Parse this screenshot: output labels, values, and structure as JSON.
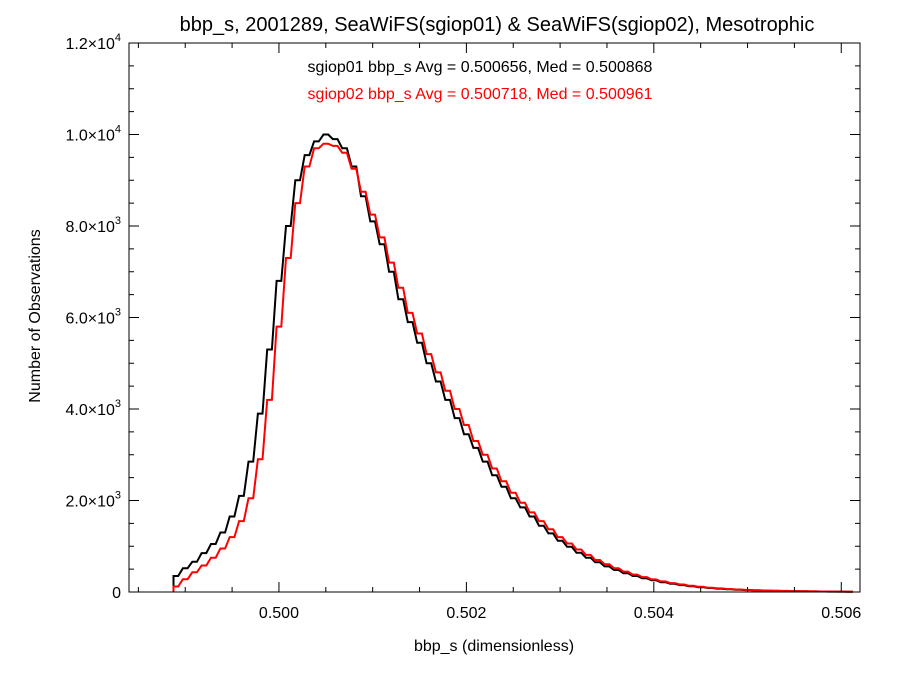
{
  "chart_data": {
    "type": "histogram",
    "title": "bbp_s, 2001289, SeaWiFS(sgiop01) & SeaWiFS(sgiop02), Mesotrophic",
    "xlabel": "bbp_s (dimensionless)",
    "ylabel": "Number of Observations",
    "xlim": [
      0.4984,
      0.5062
    ],
    "ylim": [
      0,
      12000
    ],
    "x_ticks": [
      {
        "value": 0.5,
        "label": "0.500"
      },
      {
        "value": 0.502,
        "label": "0.502"
      },
      {
        "value": 0.504,
        "label": "0.504"
      },
      {
        "value": 0.506,
        "label": "0.506"
      }
    ],
    "y_ticks": [
      {
        "value": 0,
        "label": "0"
      },
      {
        "value": 2000,
        "mant": "2.0",
        "exp": "3"
      },
      {
        "value": 4000,
        "mant": "4.0",
        "exp": "3"
      },
      {
        "value": 6000,
        "mant": "6.0",
        "exp": "3"
      },
      {
        "value": 8000,
        "mant": "8.0",
        "exp": "3"
      },
      {
        "value": 10000,
        "mant": "1.0",
        "exp": "4"
      },
      {
        "value": 12000,
        "mant": "1.2",
        "exp": "4"
      }
    ],
    "annotations": [
      {
        "text": "sgiop01 bbp_s Avg = 0.500656, Med = 0.500868",
        "color": "#000000"
      },
      {
        "text": "sgiop02 bbp_s Avg = 0.500718, Med = 0.500961",
        "color": "#ff0000"
      }
    ],
    "bin_width": 5e-05,
    "series": [
      {
        "color": "#000000",
        "x": [
          0.4989,
          0.499,
          0.4991,
          0.4992,
          0.4993,
          0.4994,
          0.4995,
          0.4996,
          0.4997,
          0.4998,
          0.4999,
          0.5,
          0.5001,
          0.5002,
          0.5003,
          0.5004,
          0.5005,
          0.5006,
          0.5007,
          0.5008,
          0.5009,
          0.501,
          0.5011,
          0.5012,
          0.5013,
          0.5014,
          0.5015,
          0.5016,
          0.5017,
          0.5018,
          0.5019,
          0.502,
          0.5021,
          0.5022,
          0.5023,
          0.5024,
          0.5025,
          0.5026,
          0.5027,
          0.5028,
          0.5029,
          0.503,
          0.5031,
          0.5032,
          0.5033,
          0.5034,
          0.5035,
          0.5036,
          0.5037,
          0.5038,
          0.5039,
          0.504,
          0.5041,
          0.5042,
          0.5043,
          0.5044,
          0.5045,
          0.5046,
          0.5047,
          0.5048,
          0.5049,
          0.505,
          0.5051,
          0.5052,
          0.5053,
          0.5054,
          0.5055,
          0.5056,
          0.5057,
          0.5058,
          0.5059,
          0.506,
          0.5061
        ],
        "values": [
          350,
          520,
          660,
          850,
          1050,
          1300,
          1650,
          2100,
          2850,
          3900,
          5300,
          6800,
          8000,
          9000,
          9550,
          9850,
          10000,
          9900,
          9700,
          9300,
          8650,
          8100,
          7600,
          7000,
          6400,
          5900,
          5450,
          5000,
          4600,
          4200,
          3800,
          3450,
          3150,
          2850,
          2550,
          2300,
          2050,
          1850,
          1650,
          1450,
          1280,
          1120,
          990,
          860,
          750,
          650,
          560,
          480,
          410,
          350,
          300,
          255,
          215,
          180,
          150,
          125,
          105,
          88,
          72,
          60,
          50,
          42,
          35,
          30,
          25,
          21,
          18,
          15,
          13,
          11,
          9,
          8,
          7
        ]
      },
      {
        "color": "#ff0000",
        "x": [
          0.4989,
          0.499,
          0.4991,
          0.4992,
          0.4993,
          0.4994,
          0.4995,
          0.4996,
          0.4997,
          0.4998,
          0.4999,
          0.5,
          0.5001,
          0.5002,
          0.5003,
          0.5004,
          0.5005,
          0.5006,
          0.5007,
          0.5008,
          0.5009,
          0.501,
          0.5011,
          0.5012,
          0.5013,
          0.5014,
          0.5015,
          0.5016,
          0.5017,
          0.5018,
          0.5019,
          0.502,
          0.5021,
          0.5022,
          0.5023,
          0.5024,
          0.5025,
          0.5026,
          0.5027,
          0.5028,
          0.5029,
          0.503,
          0.5031,
          0.5032,
          0.5033,
          0.5034,
          0.5035,
          0.5036,
          0.5037,
          0.5038,
          0.5039,
          0.504,
          0.5041,
          0.5042,
          0.5043,
          0.5044,
          0.5045,
          0.5046,
          0.5047,
          0.5048,
          0.5049,
          0.505,
          0.5051,
          0.5052,
          0.5053,
          0.5054,
          0.5055,
          0.5056,
          0.5057,
          0.5058,
          0.5059,
          0.506,
          0.5061
        ],
        "values": [
          120,
          280,
          430,
          580,
          750,
          950,
          1200,
          1550,
          2050,
          2900,
          4200,
          5800,
          7300,
          8500,
          9300,
          9700,
          9800,
          9750,
          9600,
          9250,
          8750,
          8250,
          7750,
          7200,
          6650,
          6100,
          5650,
          5200,
          4800,
          4400,
          4000,
          3650,
          3300,
          3000,
          2700,
          2420,
          2170,
          1950,
          1740,
          1550,
          1370,
          1200,
          1060,
          930,
          810,
          700,
          605,
          520,
          445,
          380,
          325,
          275,
          232,
          195,
          163,
          136,
          114,
          95,
          78,
          65,
          54,
          45,
          38,
          32,
          27,
          23,
          19,
          16,
          14,
          12,
          10,
          8,
          7
        ]
      }
    ]
  }
}
